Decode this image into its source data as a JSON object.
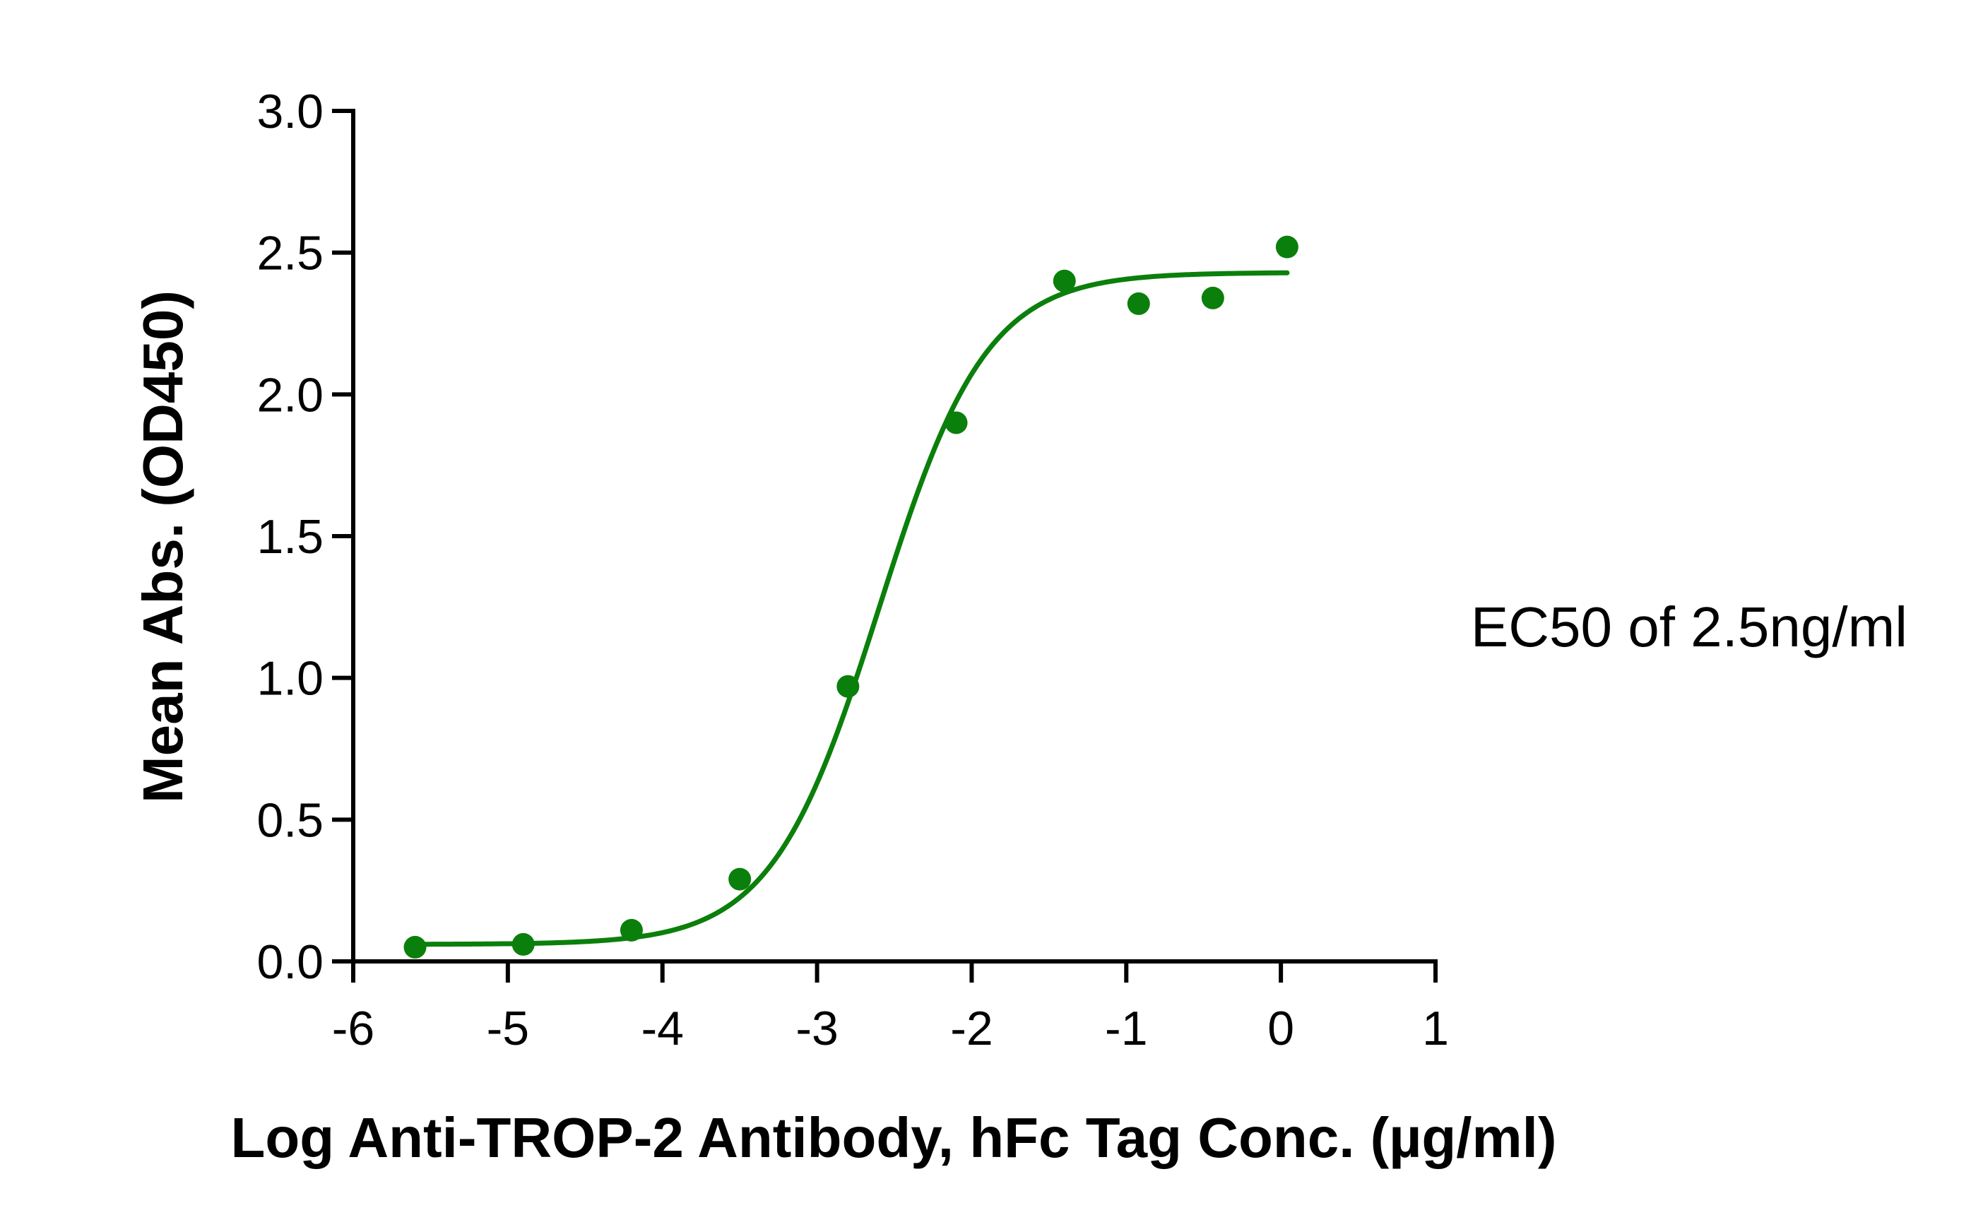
{
  "chart_data": {
    "type": "scatter",
    "title": "",
    "xlabel": "Log Anti-TROP-2 Antibody, hFc Tag Conc. (µg/ml)",
    "ylabel": "Mean Abs. (OD450)",
    "xlim": [
      -6,
      1
    ],
    "ylim": [
      0,
      3.0
    ],
    "x_ticks": [
      -6,
      -5,
      -4,
      -3,
      -2,
      -1,
      0,
      1
    ],
    "x_tick_labels": [
      "-6",
      "-5",
      "-4",
      "-3",
      "-2",
      "-1",
      "0",
      "1"
    ],
    "y_ticks": [
      0,
      0.5,
      1.0,
      1.5,
      2.0,
      2.5,
      3.0
    ],
    "y_tick_labels": [
      "0.0",
      "0.5",
      "1.0",
      "1.5",
      "2.0",
      "2.5",
      "3.0"
    ],
    "grid": false,
    "series": [
      {
        "points": [
          {
            "x": -5.6,
            "y": 0.05
          },
          {
            "x": -4.9,
            "y": 0.06
          },
          {
            "x": -4.2,
            "y": 0.11
          },
          {
            "x": -3.5,
            "y": 0.29
          },
          {
            "x": -2.8,
            "y": 0.97
          },
          {
            "x": -2.1,
            "y": 1.9
          },
          {
            "x": -1.4,
            "y": 2.4
          },
          {
            "x": -0.92,
            "y": 2.32
          },
          {
            "x": -0.44,
            "y": 2.34
          },
          {
            "x": 0.04,
            "y": 2.52
          }
        ],
        "fit": {
          "model": "4PL",
          "bottom": 0.06,
          "top": 2.43,
          "log_ec50": -2.6,
          "hill_slope": 1.25,
          "x_range": [
            -5.6,
            0.04
          ]
        },
        "color": "#0b7f0b"
      }
    ],
    "annotations": [
      {
        "text": "EC50 of 2.5ng/ml"
      }
    ]
  }
}
